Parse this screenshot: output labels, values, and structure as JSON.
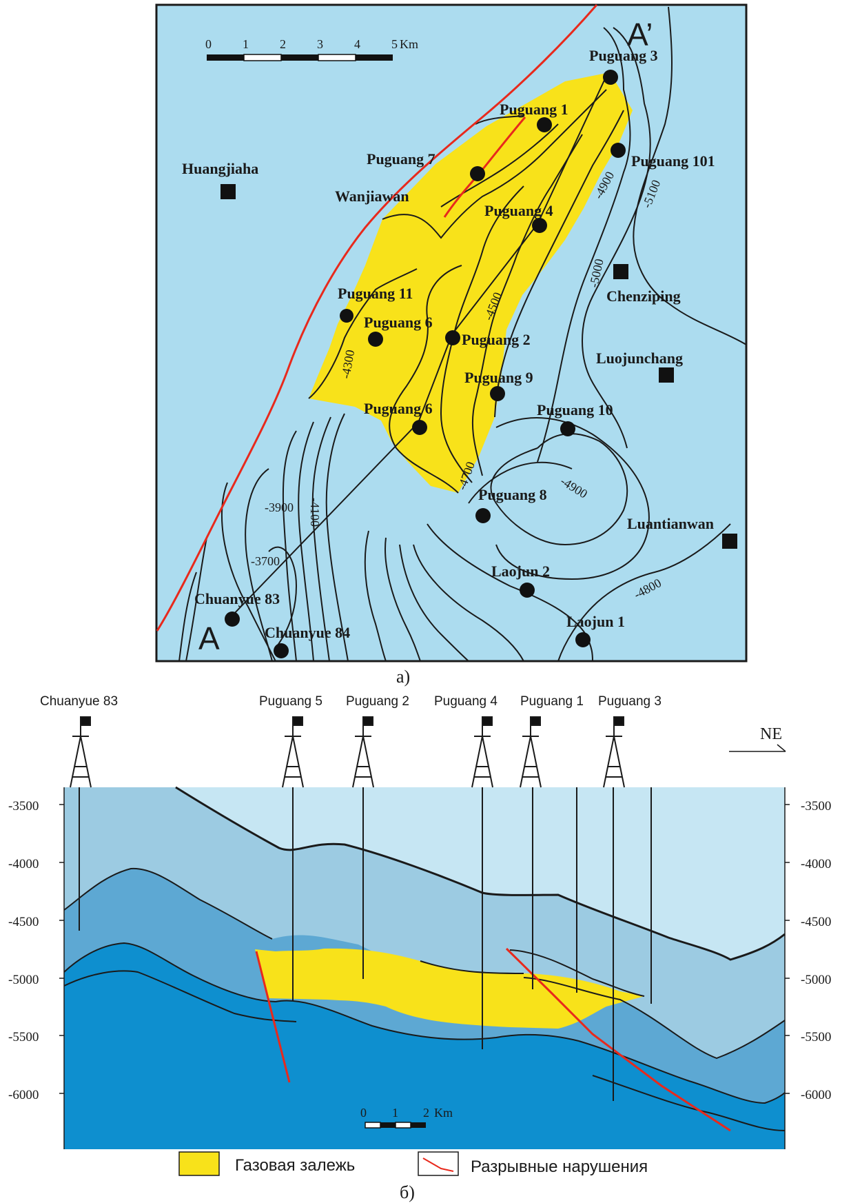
{
  "map": {
    "scale": {
      "ticks": [
        "0",
        "1",
        "2",
        "3",
        "4",
        "5"
      ],
      "unit": "Km"
    },
    "section_ends": {
      "start": "A",
      "end": "A’"
    },
    "wells": [
      {
        "name": "Puguang 3"
      },
      {
        "name": "Puguang 1"
      },
      {
        "name": "Puguang 101"
      },
      {
        "name": "Puguang 7"
      },
      {
        "name": "Puguang 4"
      },
      {
        "name": "Puguang 11"
      },
      {
        "name": "Puguang 6"
      },
      {
        "name": "Puguang 2"
      },
      {
        "name": "Puguang 9"
      },
      {
        "name": "Puguang 6"
      },
      {
        "name": "Puguang 10"
      },
      {
        "name": "Puguang 8"
      },
      {
        "name": "Laojun 2"
      },
      {
        "name": "Laojun 1"
      },
      {
        "name": "Chuanyue 83"
      },
      {
        "name": "Chuanyue 84"
      }
    ],
    "towns": [
      {
        "name": "Huangjiaha"
      },
      {
        "name": "Wanjiawan"
      },
      {
        "name": "Chenziping"
      },
      {
        "name": "Luojunchang"
      },
      {
        "name": "Luantianwan"
      }
    ],
    "contour_labels": [
      "-4900",
      "-5100",
      "-5000",
      "-4300",
      "-4500",
      "-4700",
      "-4900",
      "-3900",
      "-4100",
      "-3700",
      "-4800"
    ],
    "caption": "а)"
  },
  "section": {
    "wells": [
      "Chuanyue 83",
      "Puguang 5",
      "Puguang 2",
      "Puguang 4",
      "Puguang 1",
      "Puguang 3"
    ],
    "direction": "NE",
    "y_left": [
      "-3500",
      "-4000",
      "-4500",
      "-5000",
      "-5500",
      "-6000"
    ],
    "y_right": [
      "-3500",
      "-4000",
      "-4500",
      "-5000",
      "-5500",
      "-6000"
    ],
    "scale": {
      "ticks": [
        "0",
        "1",
        "2"
      ],
      "unit": "Km"
    },
    "caption": "б)"
  },
  "legend": {
    "gas": "Газовая залежь",
    "faults": "Разрывные нарушения"
  },
  "colors": {
    "map_bg": "#acdcef",
    "gas": "#f8e21a",
    "fault": "#e8291c",
    "layer1": "#c6e6f3",
    "layer2": "#9ccbe2",
    "layer3": "#5da8d3",
    "layer4": "#0e8fcf"
  }
}
